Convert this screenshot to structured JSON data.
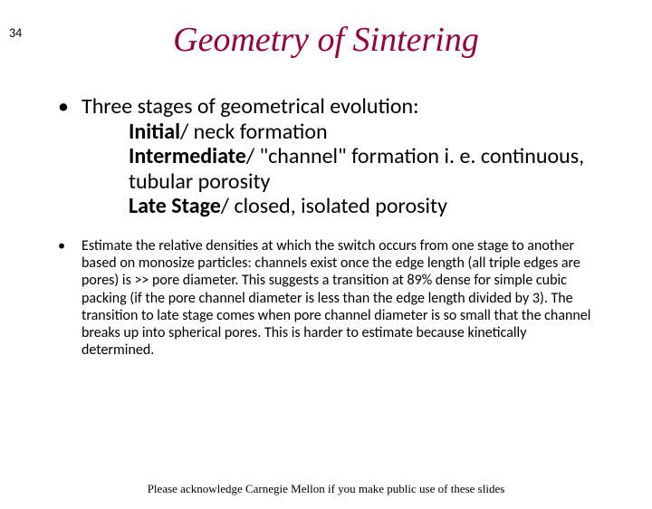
{
  "page_number": "34",
  "title": {
    "text": "Geometry of Sintering",
    "color": "#990033",
    "fontsize": 38
  },
  "bullet1": {
    "marker": "•",
    "text": "Three stages of geometrical evolution:"
  },
  "sub_items": [
    {
      "bold": "Initial",
      "rest": "/ neck formation"
    },
    {
      "bold": "Intermediate",
      "rest": "/ \"channel\" formation i. e. continuous, tubular porosity"
    },
    {
      "bold": "Late Stage",
      "rest": "/ closed, isolated porosity"
    }
  ],
  "bullet2": {
    "marker": "•",
    "text": "Estimate the relative densities at which the switch occurs from one stage to another based on monosize particles: channels exist once the edge length (all triple edges are pores) is >> pore diameter.  This suggests a transition at 89% dense for simple cubic packing (if the pore channel diameter is less than the edge length divided by 3).  The transition to late stage comes when pore channel diameter is so small that the channel breaks up into spherical pores.  This is harder to estimate because kinetically determined."
  },
  "footer": "Please acknowledge Carnegie Mellon if you make public use of these slides"
}
